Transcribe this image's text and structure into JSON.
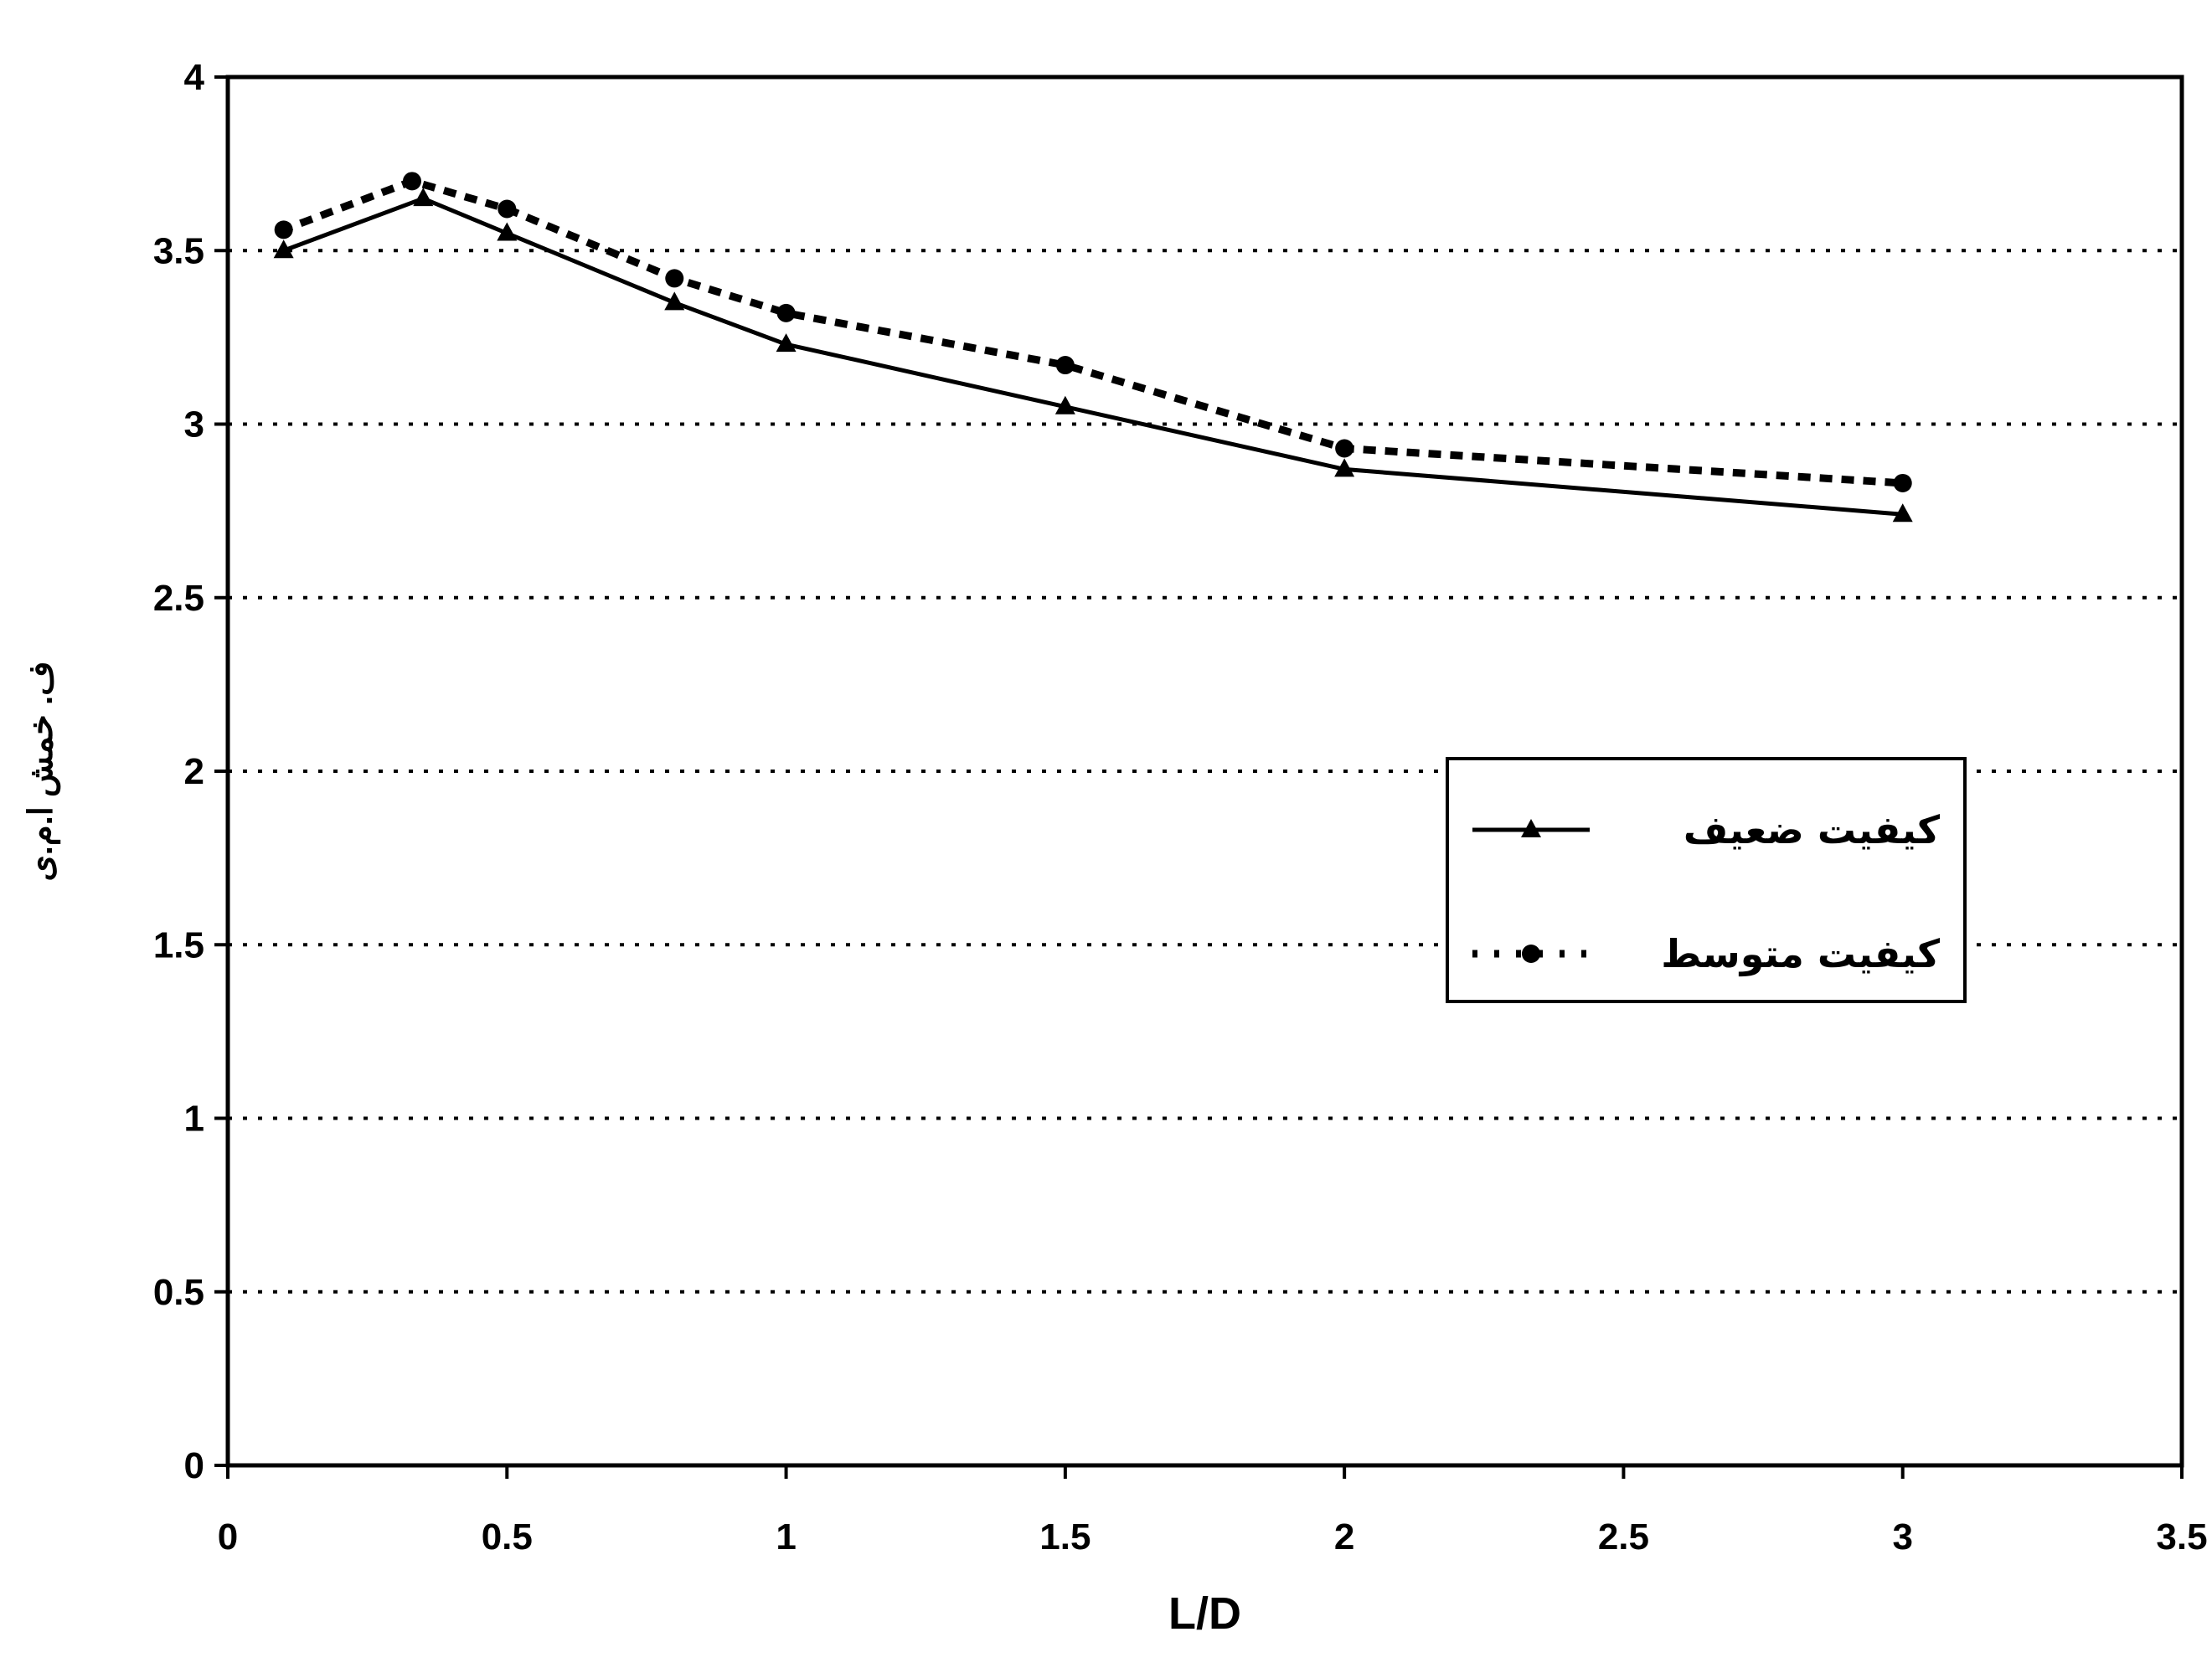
{
  "chart_data": {
    "type": "line",
    "xlabel": "L/D",
    "ylabel": "ف. خمش ا.م.ی",
    "xlim": [
      0,
      3.5
    ],
    "ylim": [
      0,
      4
    ],
    "x_ticks": [
      "0",
      "0.5",
      "1",
      "1.5",
      "2",
      "2.5",
      "3",
      "3.5"
    ],
    "y_ticks": [
      "0",
      "0.5",
      "1",
      "1.5",
      "2",
      "2.5",
      "3",
      "3.5",
      "4"
    ],
    "grid": "horizontal-dotted",
    "legend_position": "center-right",
    "series": [
      {
        "name": "کیفیت ضعیف",
        "style": "solid",
        "marker": "triangle",
        "color": "#000000",
        "x": [
          0.1,
          0.35,
          0.5,
          0.8,
          1.0,
          1.5,
          2.0,
          3.0
        ],
        "y": [
          3.5,
          3.65,
          3.55,
          3.35,
          3.23,
          3.05,
          2.87,
          2.74
        ]
      },
      {
        "name": "کیفیت متوسط",
        "style": "dotted",
        "marker": "circle",
        "color": "#000000",
        "x": [
          0.1,
          0.33,
          0.5,
          0.8,
          1.0,
          1.5,
          2.0,
          3.0
        ],
        "y": [
          3.56,
          3.7,
          3.62,
          3.42,
          3.32,
          3.17,
          2.93,
          2.83
        ]
      }
    ]
  }
}
